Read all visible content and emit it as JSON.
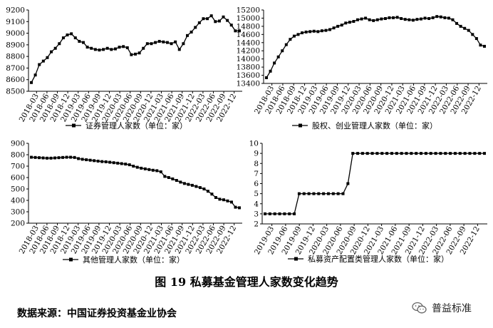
{
  "chart_data": [
    {
      "type": "line",
      "legend_label": "证券管理人家数（单位：家）",
      "ylim": [
        8500,
        9200
      ],
      "yticks": [
        8500,
        8600,
        8700,
        8800,
        8900,
        9000,
        9100,
        9200
      ],
      "xticks": [
        "2018-03",
        "2018-06",
        "2018-09",
        "2018-12",
        "2019-03",
        "2019-06",
        "2019-09",
        "2019-12",
        "2020-03",
        "2020-06",
        "2020-09",
        "2020-12",
        "2021-03",
        "2021-06",
        "2021-09",
        "2021-12",
        "2022-03",
        "2022-06",
        "2022-09",
        "2022-12"
      ],
      "values": [
        8575,
        8640,
        8730,
        8760,
        8790,
        8840,
        8870,
        8910,
        8960,
        8985,
        8995,
        8960,
        8930,
        8920,
        8880,
        8870,
        8860,
        8855,
        8860,
        8870,
        8860,
        8865,
        8880,
        8885,
        8875,
        8815,
        8820,
        8830,
        8870,
        8910,
        8910,
        8920,
        8930,
        8925,
        8920,
        8910,
        8925,
        8860,
        8910,
        8980,
        9010,
        9050,
        9090,
        9125,
        9125,
        9150,
        9100,
        9105,
        9140,
        9110,
        9070,
        9020,
        9020
      ],
      "legend_position": "bottom"
    },
    {
      "type": "line",
      "legend_label": "股权、创业管理人家数（单位：家）",
      "ylim": [
        13400,
        15200
      ],
      "yticks": [
        13400,
        13600,
        13800,
        14000,
        14200,
        14400,
        14600,
        14800,
        15000,
        15200
      ],
      "xticks": [
        "2018-03",
        "2018-06",
        "2018-09",
        "2018-12",
        "2019-03",
        "2019-06",
        "2019-09",
        "2019-12",
        "2020-03",
        "2020-06",
        "2020-09",
        "2020-12",
        "2021-03",
        "2021-06",
        "2021-09",
        "2021-12",
        "2022-03",
        "2022-06",
        "2022-09",
        "2022-12"
      ],
      "values": [
        13540,
        13700,
        13900,
        14050,
        14200,
        14350,
        14480,
        14560,
        14600,
        14640,
        14660,
        14670,
        14680,
        14670,
        14690,
        14700,
        14720,
        14760,
        14800,
        14830,
        14880,
        14900,
        14920,
        14960,
        14980,
        15000,
        14960,
        14940,
        14960,
        14980,
        14990,
        15010,
        15010,
        15020,
        14990,
        14970,
        14960,
        14950,
        14970,
        14980,
        15000,
        14990,
        15010,
        15040,
        15030,
        15010,
        15000,
        14960,
        14870,
        14800,
        14750,
        14700,
        14600,
        14500,
        14340,
        14310
      ],
      "legend_position": "bottom"
    },
    {
      "type": "line",
      "legend_label": "其他管理人家数（单位：家）",
      "ylim": [
        200,
        900
      ],
      "yticks": [
        200,
        300,
        400,
        500,
        600,
        700,
        800,
        900
      ],
      "xticks": [
        "2018-03",
        "2018-06",
        "2018-09",
        "2018-12",
        "2019-03",
        "2019-06",
        "2019-09",
        "2019-12",
        "2020-03",
        "2020-06",
        "2020-09",
        "2020-12",
        "2021-03",
        "2021-06",
        "2021-09",
        "2021-12",
        "2022-03",
        "2022-06",
        "2022-09",
        "2022-12"
      ],
      "values": [
        778,
        776,
        774,
        772,
        770,
        770,
        772,
        774,
        776,
        778,
        778,
        776,
        766,
        760,
        756,
        752,
        748,
        744,
        740,
        738,
        734,
        730,
        726,
        722,
        718,
        712,
        700,
        690,
        682,
        676,
        670,
        664,
        660,
        650,
        610,
        600,
        588,
        575,
        560,
        548,
        540,
        532,
        522,
        512,
        500,
        480,
        455,
        425,
        410,
        405,
        395,
        385,
        340,
        335
      ],
      "legend_position": "bottom"
    },
    {
      "type": "line",
      "legend_label": "私募资产配置类管理人家数（单位：家）",
      "ylim": [
        2,
        10
      ],
      "yticks": [
        2,
        3,
        4,
        5,
        6,
        7,
        8,
        9,
        10
      ],
      "xticks": [
        "2019-03",
        "2019-06",
        "2019-09",
        "2019-12",
        "2020-03",
        "2020-06",
        "2020-09",
        "2020-12",
        "2021-03",
        "2021-06",
        "2021-09",
        "2021-12",
        "2022-03",
        "2022-06",
        "2022-09",
        "2022-12"
      ],
      "values": [
        3,
        3,
        3,
        3,
        3,
        3,
        3,
        5,
        5,
        5,
        5,
        5,
        5,
        5,
        5,
        5,
        5,
        6,
        9,
        9,
        9,
        9,
        9,
        9,
        9,
        9,
        9,
        9,
        9,
        9,
        9,
        9,
        9,
        9,
        9,
        9,
        9,
        9,
        9,
        9,
        9,
        9,
        9,
        9,
        9,
        9
      ],
      "legend_position": "bottom"
    }
  ],
  "figure_title": "图 19    私募基金管理人家数变化趋势",
  "source_text": "数据来源：中国证券投资基金业协会",
  "watermark_text": "普益标准"
}
